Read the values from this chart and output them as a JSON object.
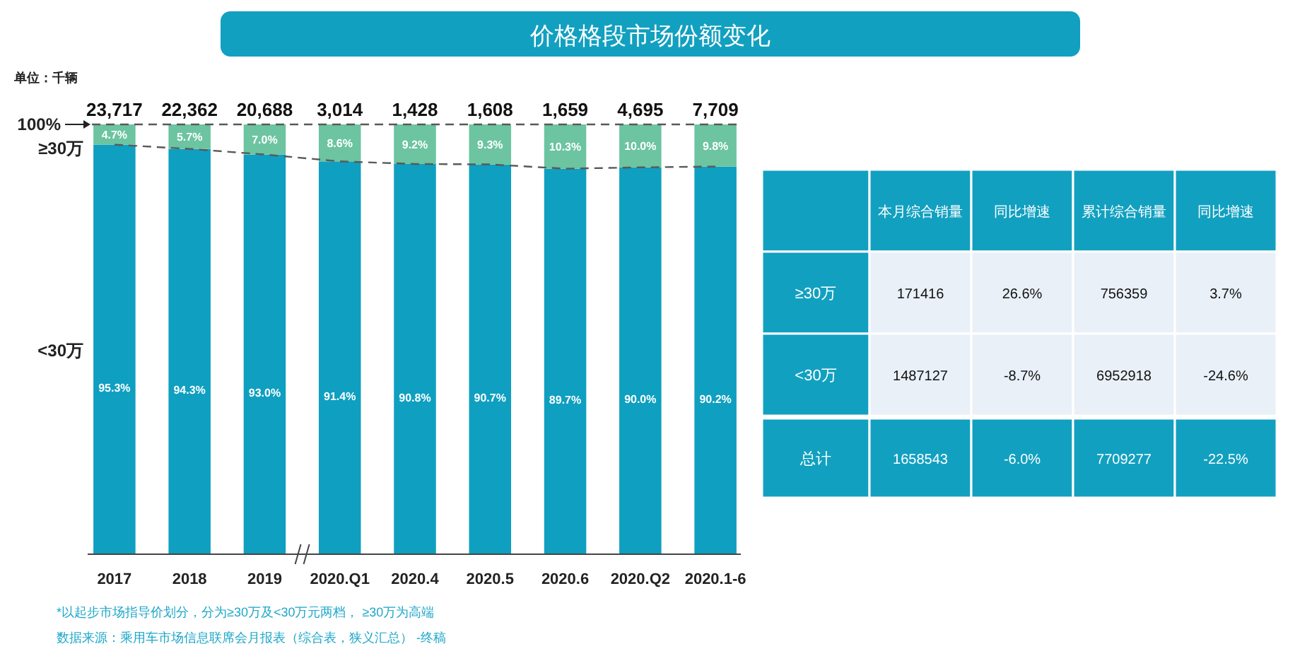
{
  "chart_data": [
    {
      "type": "bar",
      "title": "价格格段市场份额变化",
      "annotations": [
        "单位：千辆",
        "*以起步市场指导价划分，分为≥30万及<30万元两档，  ≥30万为高端",
        "数据来源：乘用车市场信息联席会月报表（综合表，狭义汇总）  -终稿",
        {
          "text": "23,717",
          "x": "2017",
          "y": 100
        },
        {
          "text": "22,362",
          "x": "2018",
          "y": 100
        },
        {
          "text": "20,688",
          "x": "2019",
          "y": 100
        },
        {
          "text": "3,014",
          "x": "2020.Q1",
          "y": 100
        },
        {
          "text": "1,428",
          "x": "2020.4",
          "y": 100
        },
        {
          "text": "1,608",
          "x": "2020.5",
          "y": 100
        },
        {
          "text": "1,659",
          "x": "2020.6",
          "y": 100
        },
        {
          "text": "4,695",
          "x": "2020.Q2",
          "y": 100
        },
        {
          "text": "7,709",
          "x": "2020.1-6",
          "y": 100
        }
      ],
      "categories": [
        "2017",
        "2018",
        "2019",
        "2020.Q1",
        "2020.4",
        "2020.5",
        "2020.6",
        "2020.Q2",
        "2020.1-6"
      ],
      "series": [
        {
          "name": "<30万",
          "color": "#0f9fc0",
          "values": [
            95.3,
            94.3,
            93.0,
            91.4,
            90.8,
            90.7,
            89.7,
            90.0,
            90.2
          ],
          "value_labels": [
            "95.3%",
            "94.3%",
            "93.0%",
            "91.4%",
            "90.8%",
            "90.7%",
            "89.7%",
            "90.0%",
            "90.2%"
          ]
        },
        {
          "name": "≥30万",
          "color": "#6cc4a1",
          "values": [
            4.7,
            5.7,
            7.0,
            8.6,
            9.2,
            9.3,
            10.3,
            10.0,
            9.8
          ],
          "value_labels": [
            "4.7%",
            "5.7%",
            "7.0%",
            "8.6%",
            "9.2%",
            "9.3%",
            "10.3%",
            "10.0%",
            "9.8%"
          ]
        },
        {
          "type": "line",
          "color": "#595959",
          "line_style": "dashed",
          "values": [
            95.3,
            94.3,
            93.0,
            91.4,
            90.8,
            90.7,
            89.7,
            90.0,
            90.2
          ]
        }
      ],
      "stacked": true,
      "ylim": [
        0,
        100
      ],
      "yticks": [
        {
          "value": 100,
          "label": "100%"
        }
      ],
      "ref_lines": [
        {
          "axis": "y",
          "value": 100,
          "color": "#595959",
          "line_style": "dashed"
        }
      ],
      "grid": false
    },
    {
      "type": "other",
      "categories": [
        null,
        "本月综合销量",
        "同比增速",
        "累计综合销量",
        "同比增速"
      ],
      "y_categories": [
        "≥30万",
        "<30万",
        "总计"
      ],
      "cell_labels": [
        [
          "171416",
          "26.6%",
          "756359",
          "3.7%"
        ],
        [
          "1487127",
          "-8.7%",
          "6952918",
          "-24.6%"
        ],
        [
          "1658543",
          "-6.0%",
          "7709277",
          "-22.5%"
        ]
      ]
    }
  ]
}
